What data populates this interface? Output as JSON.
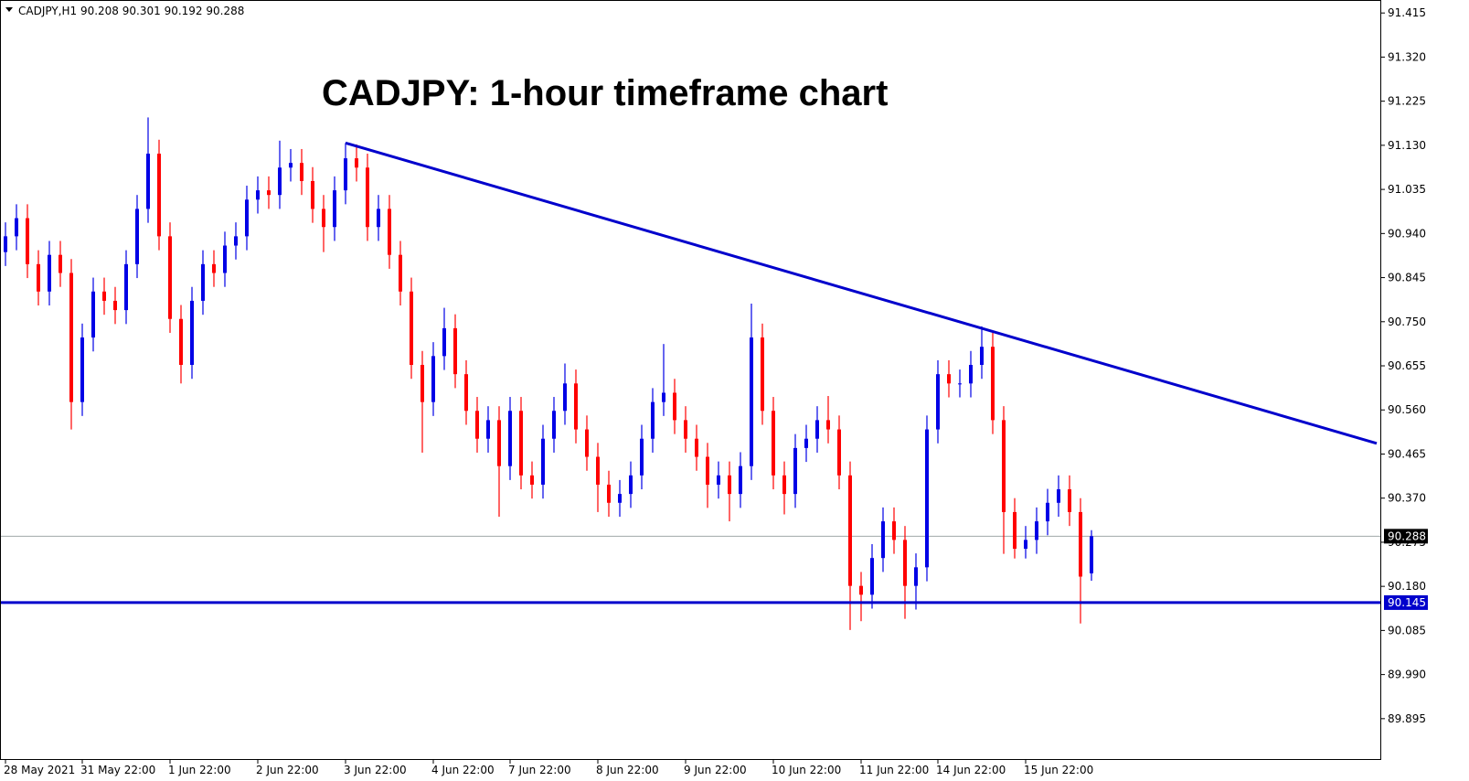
{
  "chart_data": {
    "type": "candlestick",
    "header": "CADJPY,H1  90.208 90.301 90.192 90.288",
    "title": "CADJPY: 1-hour timeframe chart",
    "up_color": "#0000e6",
    "down_color": "#ff0000",
    "categories": [
      "28 May 2021",
      null,
      null,
      null,
      null,
      null,
      null,
      "31 May 22:00",
      null,
      null,
      null,
      null,
      null,
      null,
      null,
      "1 Jun 22:00",
      null,
      null,
      null,
      null,
      null,
      null,
      null,
      "2 Jun 22:00",
      null,
      null,
      null,
      null,
      null,
      null,
      null,
      "3 Jun 22:00",
      null,
      null,
      null,
      null,
      null,
      null,
      null,
      "4 Jun 22:00",
      null,
      null,
      null,
      null,
      null,
      null,
      "7 Jun 22:00",
      null,
      null,
      null,
      null,
      null,
      null,
      null,
      "8 Jun 22:00",
      null,
      null,
      null,
      null,
      null,
      null,
      null,
      "9 Jun 22:00",
      null,
      null,
      null,
      null,
      null,
      null,
      null,
      "10 Jun 22:00",
      null,
      null,
      null,
      null,
      null,
      null,
      null,
      "11 Jun 22:00",
      null,
      null,
      null,
      null,
      null,
      null,
      "14 Jun 22:00",
      null,
      null,
      null,
      null,
      null,
      null,
      null,
      "15 Jun 22:00",
      null,
      null,
      null,
      null,
      null,
      null
    ],
    "open": [
      90.9,
      90.934,
      90.973,
      90.874,
      90.815,
      90.894,
      90.855,
      90.577,
      90.716,
      90.815,
      90.795,
      90.775,
      90.874,
      90.993,
      91.112,
      90.934,
      90.756,
      90.657,
      90.795,
      90.874,
      90.855,
      90.914,
      90.934,
      91.013,
      91.033,
      91.023,
      91.082,
      91.092,
      91.053,
      90.993,
      90.954,
      91.033,
      91.102,
      91.082,
      90.954,
      90.993,
      90.894,
      90.815,
      90.657,
      90.577,
      90.676,
      90.736,
      90.637,
      90.558,
      90.498,
      90.538,
      90.439,
      90.558,
      90.419,
      90.399,
      90.498,
      90.558,
      90.617,
      90.518,
      90.459,
      90.399,
      90.36,
      90.379,
      90.419,
      90.498,
      90.577,
      90.597,
      90.538,
      90.498,
      90.459,
      90.399,
      90.419,
      90.379,
      90.439,
      90.716,
      90.558,
      90.419,
      90.379,
      90.478,
      90.498,
      90.538,
      90.518,
      90.419,
      90.181,
      90.162,
      90.241,
      90.32,
      90.28,
      90.181,
      90.221,
      90.518,
      90.637,
      90.617,
      90.617,
      90.657,
      90.696,
      90.538,
      90.34,
      90.261,
      90.28,
      90.32,
      90.36,
      90.389,
      90.34,
      90.208
    ],
    "high": [
      90.964,
      91.003,
      91.003,
      90.904,
      90.924,
      90.924,
      90.885,
      90.746,
      90.845,
      90.845,
      90.825,
      90.904,
      91.023,
      91.19,
      91.142,
      90.964,
      90.786,
      90.825,
      90.904,
      90.904,
      90.944,
      90.964,
      91.043,
      91.063,
      91.063,
      91.14,
      91.122,
      91.122,
      91.083,
      91.023,
      91.063,
      91.135,
      91.132,
      91.112,
      91.023,
      91.023,
      90.924,
      90.845,
      90.687,
      90.706,
      90.78,
      90.766,
      90.667,
      90.588,
      90.568,
      90.568,
      90.588,
      90.588,
      90.449,
      90.528,
      90.588,
      90.66,
      90.647,
      90.548,
      90.489,
      90.429,
      90.409,
      90.449,
      90.528,
      90.607,
      90.702,
      90.627,
      90.568,
      90.528,
      90.489,
      90.449,
      90.449,
      90.469,
      90.789,
      90.746,
      90.588,
      90.449,
      90.508,
      90.528,
      90.568,
      90.59,
      90.548,
      90.449,
      90.211,
      90.271,
      90.35,
      90.35,
      90.31,
      90.251,
      90.548,
      90.667,
      90.667,
      90.647,
      90.687,
      90.74,
      90.726,
      90.568,
      90.37,
      90.31,
      90.35,
      90.39,
      90.419,
      90.419,
      90.37,
      90.301
    ],
    "low": [
      90.87,
      90.904,
      90.844,
      90.785,
      90.785,
      90.825,
      90.518,
      90.547,
      90.686,
      90.765,
      90.745,
      90.745,
      90.844,
      90.963,
      90.904,
      90.726,
      90.617,
      90.627,
      90.765,
      90.825,
      90.825,
      90.884,
      90.904,
      90.983,
      90.993,
      90.993,
      91.052,
      91.023,
      90.963,
      90.9,
      90.924,
      91.003,
      91.052,
      90.924,
      90.924,
      90.864,
      90.785,
      90.627,
      90.468,
      90.547,
      90.646,
      90.607,
      90.528,
      90.468,
      90.468,
      90.33,
      90.409,
      90.389,
      90.369,
      90.369,
      90.468,
      90.528,
      90.488,
      90.429,
      90.34,
      90.33,
      90.33,
      90.349,
      90.389,
      90.468,
      90.547,
      90.508,
      90.468,
      90.429,
      90.349,
      90.369,
      90.32,
      90.349,
      90.409,
      90.528,
      90.389,
      90.335,
      90.349,
      90.448,
      90.468,
      90.488,
      90.389,
      90.086,
      90.105,
      90.132,
      90.211,
      90.25,
      90.11,
      90.13,
      90.191,
      90.488,
      90.587,
      90.587,
      90.587,
      90.627,
      90.508,
      90.25,
      90.24,
      90.24,
      90.25,
      90.29,
      90.33,
      90.31,
      90.1,
      90.192
    ],
    "close": [
      90.934,
      90.973,
      90.874,
      90.815,
      90.894,
      90.855,
      90.577,
      90.716,
      90.815,
      90.795,
      90.775,
      90.874,
      90.993,
      91.112,
      90.934,
      90.756,
      90.657,
      90.795,
      90.874,
      90.855,
      90.914,
      90.934,
      91.013,
      91.033,
      91.023,
      91.082,
      91.092,
      91.053,
      90.993,
      90.954,
      91.033,
      91.102,
      91.082,
      90.954,
      90.993,
      90.894,
      90.815,
      90.657,
      90.577,
      90.676,
      90.736,
      90.637,
      90.558,
      90.498,
      90.538,
      90.439,
      90.558,
      90.419,
      90.399,
      90.498,
      90.558,
      90.617,
      90.518,
      90.459,
      90.399,
      90.36,
      90.379,
      90.419,
      90.498,
      90.577,
      90.597,
      90.538,
      90.498,
      90.459,
      90.399,
      90.419,
      90.379,
      90.439,
      90.716,
      90.558,
      90.419,
      90.379,
      90.478,
      90.498,
      90.538,
      90.518,
      90.419,
      90.181,
      90.162,
      90.241,
      90.32,
      90.28,
      90.181,
      90.221,
      90.518,
      90.637,
      90.617,
      90.617,
      90.657,
      90.696,
      90.538,
      90.34,
      90.261,
      90.28,
      90.32,
      90.36,
      90.389,
      90.34,
      90.201,
      90.288
    ],
    "ylim": [
      89.808,
      91.441
    ],
    "yticks": [
      91.415,
      {
        "value": 91.32,
        "label": "91.320"
      },
      91.225,
      {
        "value": 91.13,
        "label": "91.130"
      },
      91.035,
      {
        "value": 90.94,
        "label": "90.940"
      },
      90.845,
      {
        "value": 90.75,
        "label": "90.750"
      },
      90.655,
      {
        "value": 90.56,
        "label": "90.560"
      },
      90.465,
      {
        "value": 90.37,
        "label": "90.370"
      },
      90.275,
      {
        "value": 90.18,
        "label": "90.180"
      },
      90.085,
      {
        "value": 89.99,
        "label": "89.990"
      },
      89.895
    ],
    "trendline": {
      "x": [
        31,
        125
      ],
      "y": [
        91.135,
        90.488
      ],
      "color": "#0000cc"
    },
    "support": 90.145,
    "last_price": 90.288
  }
}
